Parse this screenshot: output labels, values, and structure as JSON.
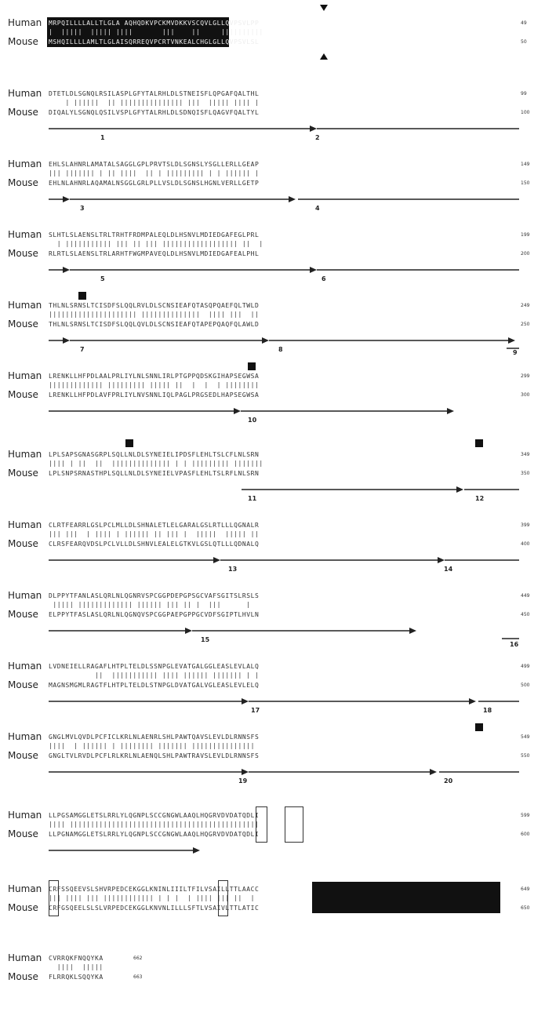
{
  "labels": {
    "human": "Human",
    "mouse": "Mouse"
  },
  "blocks": [
    {
      "human": "MRPQILLLLALLTLGLA AQHQDKVPCKMVDKKVSCQVLGLLQVPSVLPP",
      "match": "|  |||||  ||||| ||||       |||    ||     ||||||||||",
      "mouse": "MSHQILLLLAMLTLGLAISQRREQVPCRTVNKEALCHGLGLLQVPSVLSL",
      "hnum": "49",
      "mnum": "50",
      "arrows": []
    },
    {
      "human": "DTETLDLSGNQLRSILASPLGFYTALRHLDLSTNEISFLQPGAFQALTHL",
      "match": "    | ||||||  || ||||||||||||||| |||  ||||| |||| |",
      "mouse": "DIQALYLSGNQLQSILVSPLGFYTALRHLDLSDNQISFLQAGVFQALTYL",
      "hnum": "99",
      "mnum": "100",
      "arrows": [
        {
          "n": "1"
        },
        {
          "n": "2"
        }
      ]
    },
    {
      "human": "EHLSLAHNRLAMATALSAGGLGPLPRVTSLDLSGNSLYSGLLERLLGEAP",
      "match": "||| ||||||| | || ||||  || | ||||||||| | | |||||| |",
      "mouse": "EHLNLAHNRLAQAMALNSGGLGRLPLLVSLDLSGNSLHGNLVERLLGETP",
      "hnum": "149",
      "mnum": "150",
      "arrows": [
        {
          "n": "3"
        },
        {
          "n": "4"
        }
      ]
    },
    {
      "human": "SLHTLSLAENSLTRLTRHTFRDMPALEQLDLHSNVLMDIEDGAFEGLPRL",
      "match": "  | ||||||||||| ||| || ||| |||||||||||||||||| ||  |",
      "mouse": "RLRTLSLAENSLTRLARHTFWGMPAVEQLDLHSNVLMDIEDGAFEALPHL",
      "hnum": "199",
      "mnum": "200",
      "arrows": [
        {
          "n": "5"
        },
        {
          "n": "6"
        }
      ]
    },
    {
      "human": "THLNLSRNSLTCISDFSLQQLRVLDLSCNSIEAFQTASQPQAEFQLTWLD",
      "match": "||||||||||||||||||||| ||||||||||||||  |||| |||  ||",
      "mouse": "THLNLSRNSLTCISDFSLQQLQVLDLSCNSIEAFQTAPEPQAQFQLAWLD",
      "hnum": "249",
      "mnum": "250",
      "arrows": [
        {
          "n": "7"
        },
        {
          "n": "8"
        },
        {
          "n": "9"
        }
      ]
    },
    {
      "human": "LRENKLLHFPDLAALPRLIYLNLSNNLIRLPTGPPQDSKGIHAPSEGWSA",
      "match": "||||||||||||| ||||||||| ||||| ||  |  |  | ||||||||",
      "mouse": "LRENKLLHFPDLAVFPRLIYLNVSNNLIQLPAGLPRGSEDLHAPSEGWSA",
      "hnum": "299",
      "mnum": "300",
      "arrows": [
        {
          "n": "10"
        }
      ]
    },
    {
      "human": "LPLSAPSGNASGRPLSQLLNLDLSYNEIELIPDSFLEHLTSLCFLNLSRN",
      "match": "|||| | ||  ||  |||||||||||||| | | ||||||||| |||||||",
      "mouse": "LPLSNPSRNASTHPLSQLLNLDLSYNEIELVPASFLEHLTSLRFLNLSRN",
      "hnum": "349",
      "mnum": "350",
      "arrows": [
        {
          "n": "11"
        },
        {
          "n": "12"
        }
      ]
    },
    {
      "human": "CLRTFEARRLGSLPCLMLLDLSHNALETLELGARALGSLRTLLLQGNALR",
      "match": "||| |||  | |||| | |||||| || ||| |  |||||  ||||| ||",
      "mouse": "CLRSFEARQVDSLPCLVLLDLSHNVLEALELGTKVLGSLQTLLLQDNALQ",
      "hnum": "399",
      "mnum": "400",
      "arrows": [
        {
          "n": "13"
        },
        {
          "n": "14"
        }
      ]
    },
    {
      "human": "DLPPYTFANLASLQRLNLQGNRVSPCGGPDEPGPSGCVAFSGITSLRSLS",
      "match": " ||||| ||||||||||||| |||||| ||| || |  |||      | ",
      "mouse": "ELPPYTFASLASLQRLNLQGNQVSPCGGPAEPGPPGCVDFSGIPTLHVLN",
      "hnum": "449",
      "mnum": "450",
      "arrows": [
        {
          "n": "15"
        },
        {
          "n": "16"
        }
      ]
    },
    {
      "human": "LVDNEIELLRAGAFLHTPLTELDLSSNPGLEVATGALGGLEASLEVLALQ",
      "match": "           ||  ||||||||||| |||| |||||| ||||||| | |",
      "mouse": "MAGNSMGMLRAGTFLHTPLTELDLSTNPGLDVATGALVGLEASLEVLELQ",
      "hnum": "499",
      "mnum": "500",
      "arrows": [
        {
          "n": "17"
        },
        {
          "n": "18"
        }
      ]
    },
    {
      "human": "GNGLMVLQVDLPCFICLKRLNLAENRLSHLPAWTQAVSLEVLDLRNNSFS",
      "match": "||||  | |||||| | |||||||| ||||||| |||||||||||||||",
      "mouse": "GNGLTVLRVDLPCFLRLKRLNLAENQLSHLPAWTRAVSLEVLDLRNNSFS",
      "hnum": "549",
      "mnum": "550",
      "arrows": [
        {
          "n": "19"
        },
        {
          "n": "20"
        }
      ]
    },
    {
      "human": "LLPGSAMGGLETSLRRLYLQGNPLSCCGNGWLAAQLHQGRVDVDATQDLI",
      "match": "|||| |||||||||||||||||||||||||||||||||||||||||||||",
      "mouse": "LLPGNAMGGLETSLRRLYLQGNPLSCCGNGWLAAQLHQGRVDVDATQDLI",
      "hnum": "599",
      "mnum": "600",
      "arrows": [
        {
          "n": ""
        }
      ]
    },
    {
      "human": "CRFSSQEEVSLSHVRPEDCEKGGLKNINLIIILTFILVSAILLTTLAACC",
      "match": "||| |||| ||| |||||||||||| | | |  | |||| ||| ||  |",
      "mouse": "CRFGSQEELSLSLVRPEDCEKGGLKNVNLILLLSFTLVSAIVLTTLATIC",
      "hnum": "649",
      "mnum": "650",
      "arrows": []
    },
    {
      "human": "CVRRQKFNQQYKA",
      "match": "  ||||  |||||",
      "mouse": "FLRRQKLSQQYKA",
      "hnum": "662",
      "mnum": "663",
      "arrows": []
    }
  ]
}
